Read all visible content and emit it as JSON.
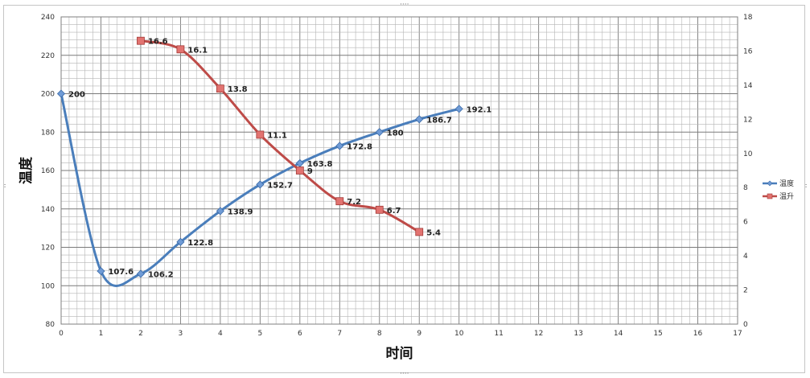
{
  "chart_data": {
    "type": "line",
    "xlabel": "时间",
    "ylabel": "温度",
    "xlim": [
      0,
      17
    ],
    "ylim_left": [
      80,
      240
    ],
    "ylim_right": [
      0,
      18
    ],
    "x_ticks": [
      "0",
      "1",
      "2",
      "3",
      "4",
      "5",
      "6",
      "7",
      "8",
      "9",
      "10",
      "11",
      "12",
      "13",
      "14",
      "15",
      "16",
      "17"
    ],
    "y_left_ticks": [
      "80",
      "100",
      "120",
      "140",
      "160",
      "180",
      "200",
      "220",
      "240"
    ],
    "y_right_ticks": [
      "0",
      "2",
      "4",
      "6",
      "8",
      "10",
      "12",
      "14",
      "16",
      "18"
    ],
    "grid": true,
    "legend_position": "right",
    "series": [
      {
        "name": "温度",
        "axis": "left",
        "color": "#4a7ebb",
        "marker": "diamond",
        "smooth": true,
        "x": [
          0,
          1,
          2,
          3,
          4,
          5,
          6,
          7,
          8,
          9,
          10
        ],
        "values": [
          200,
          107.6,
          106.2,
          122.8,
          138.9,
          152.7,
          163.8,
          172.8,
          180,
          186.7,
          192.1
        ],
        "labels": [
          "200",
          "107.6",
          "106.2",
          "122.8",
          "138.9",
          "152.7",
          "163.8",
          "172.8",
          "180",
          "186.7",
          "192.1"
        ]
      },
      {
        "name": "温升",
        "axis": "right",
        "color": "#be4b48",
        "marker": "square",
        "smooth": true,
        "x": [
          2,
          3,
          4,
          5,
          6,
          7,
          8,
          9
        ],
        "values": [
          16.6,
          16.1,
          13.8,
          11.1,
          9,
          7.2,
          6.7,
          5.4
        ],
        "labels": [
          "16.6",
          "16.1",
          "13.8",
          "11.1",
          "9",
          "7.2",
          "6.7",
          "5.4"
        ]
      }
    ]
  }
}
